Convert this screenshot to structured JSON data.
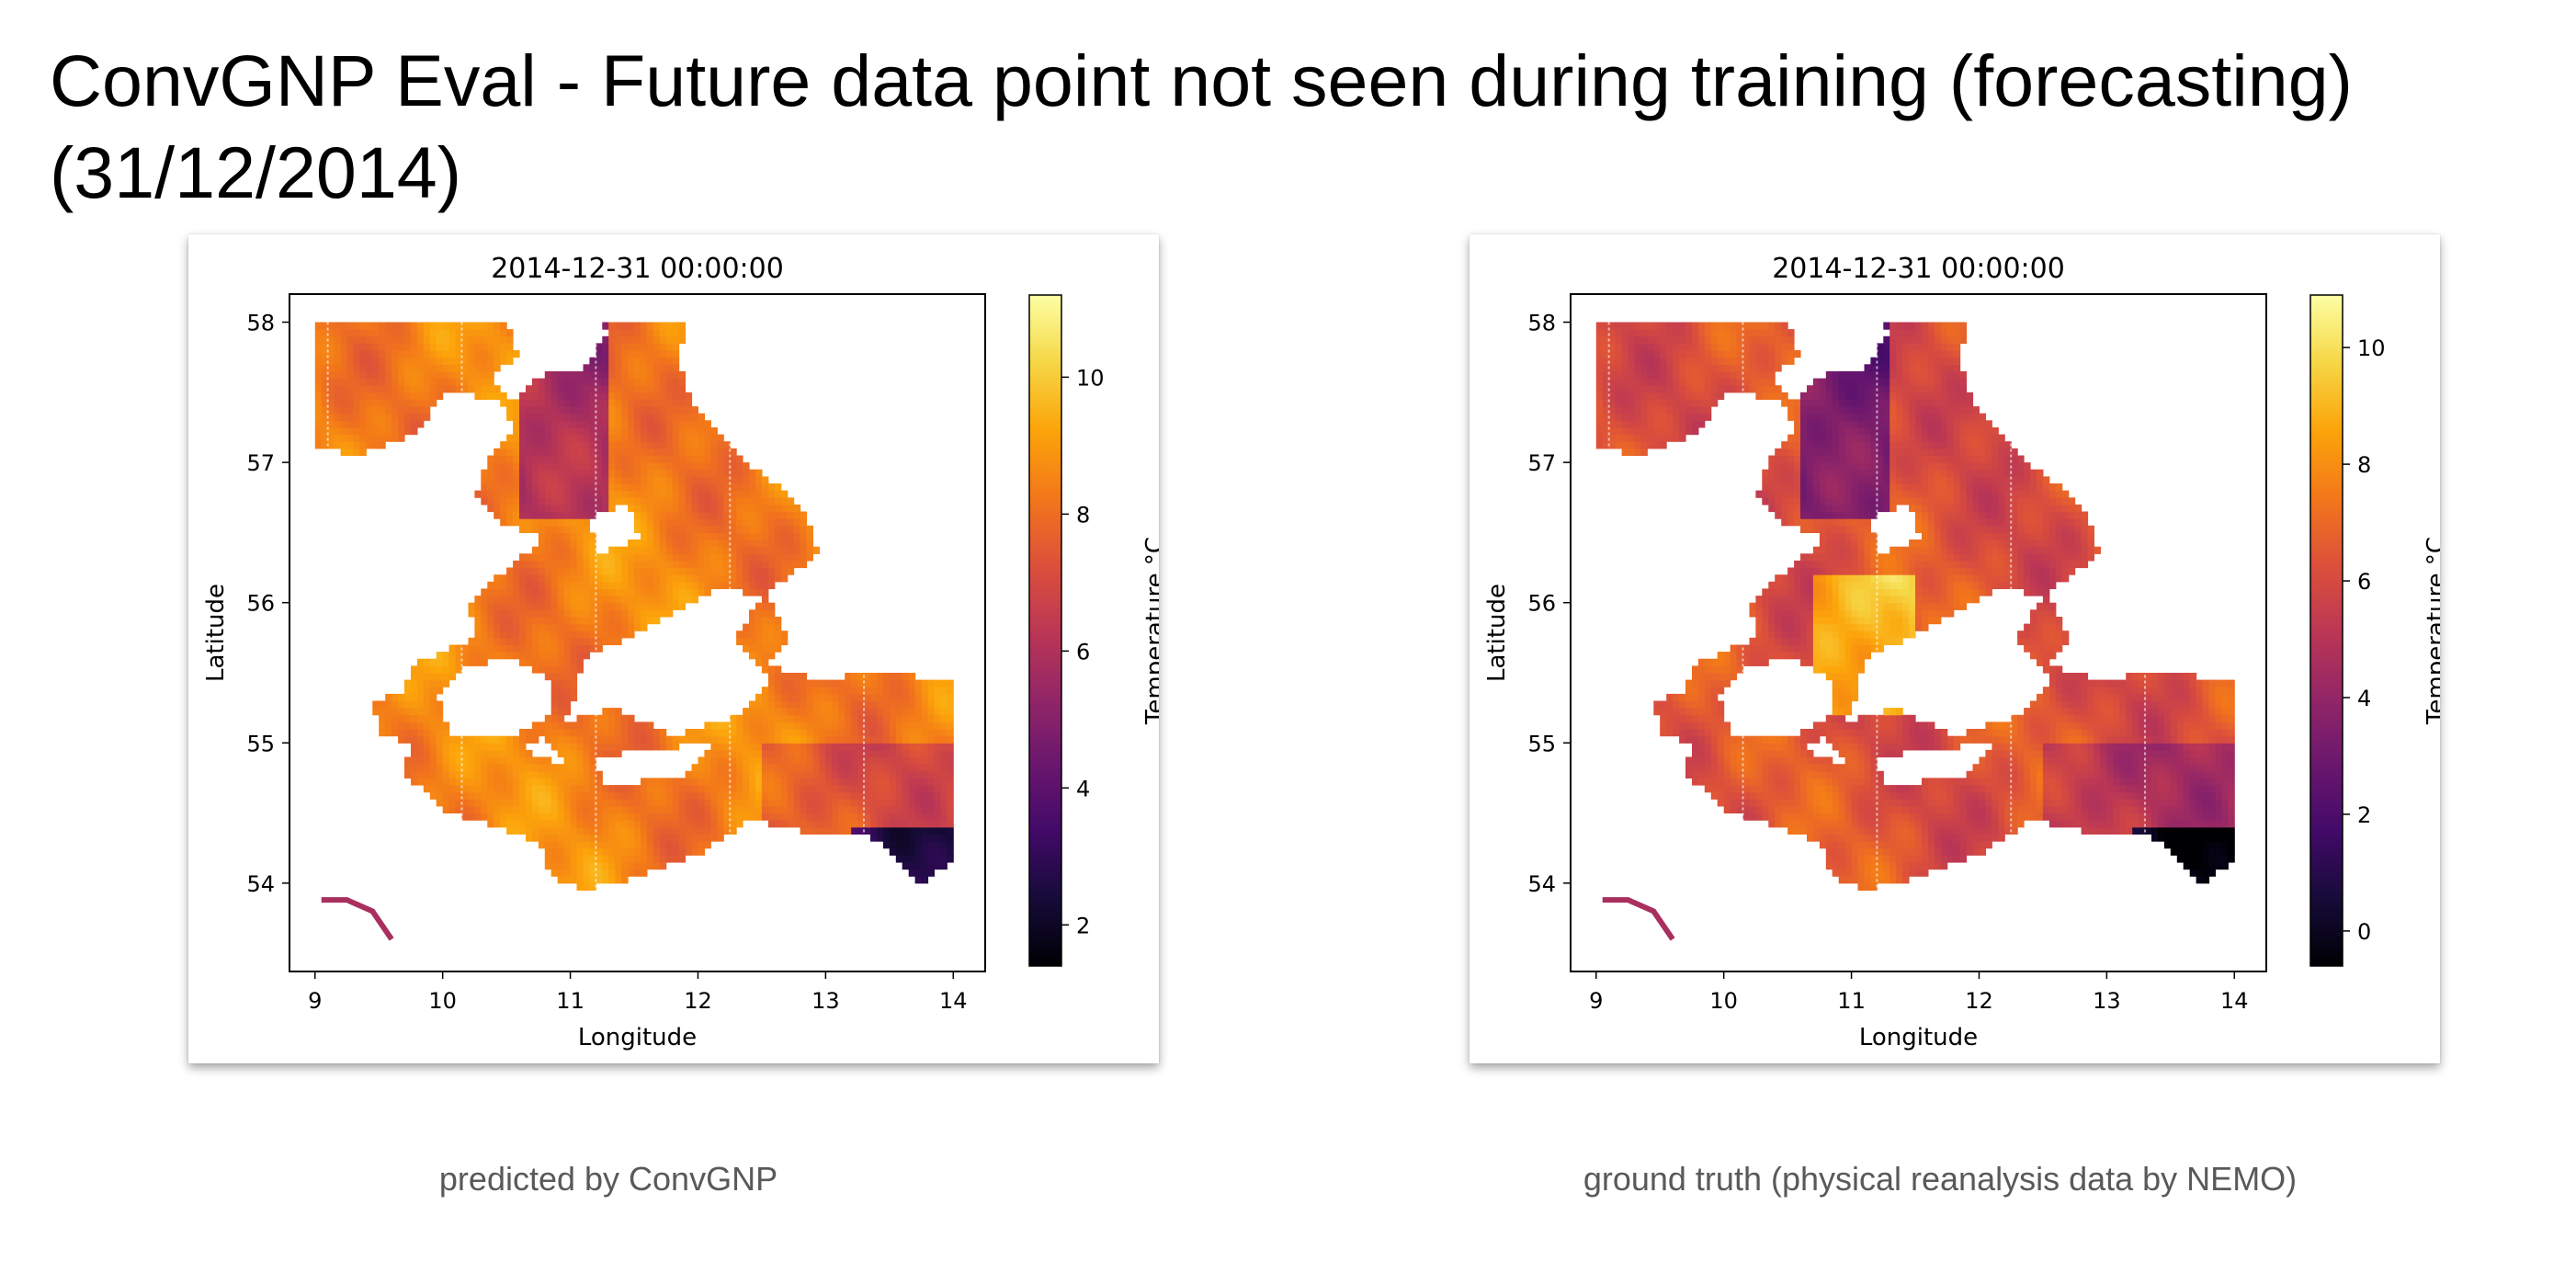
{
  "slide": {
    "title": "ConvGNP Eval - Future data point not seen during training (forecasting) (31/12/2014)"
  },
  "panels": [
    {
      "caption": "predicted by ConvGNP",
      "chart_data": {
        "type": "heatmap",
        "title": "2014-12-31 00:00:00",
        "xlabel": "Longitude",
        "ylabel": "Latitude",
        "xlim": [
          8.8,
          14.25
        ],
        "ylim": [
          53.37,
          58.2
        ],
        "x_ticks": [
          9,
          10,
          11,
          12,
          13,
          14
        ],
        "y_ticks": [
          54,
          55,
          56,
          57,
          58
        ],
        "colorbar": {
          "label": "Temperature °C",
          "colormap": "inferno",
          "range": [
            1.4,
            11.2
          ],
          "ticks": [
            2,
            4,
            6,
            8,
            10
          ]
        },
        "dominant_value_range_sea": [
          6,
          10
        ]
      }
    },
    {
      "caption": "ground truth (physical reanalysis data by NEMO)",
      "chart_data": {
        "type": "heatmap",
        "title": "2014-12-31 00:00:00",
        "xlabel": "Longitude",
        "ylabel": "Latitude",
        "xlim": [
          8.8,
          14.25
        ],
        "ylim": [
          53.37,
          58.2
        ],
        "x_ticks": [
          9,
          10,
          11,
          12,
          13,
          14
        ],
        "y_ticks": [
          54,
          55,
          56,
          57,
          58
        ],
        "colorbar": {
          "label": "Temperature °C",
          "colormap": "inferno",
          "range": [
            -0.6,
            10.9
          ],
          "ticks": [
            0,
            2,
            4,
            6,
            8,
            10
          ]
        },
        "dominant_value_range_sea": [
          5,
          9
        ]
      }
    }
  ]
}
